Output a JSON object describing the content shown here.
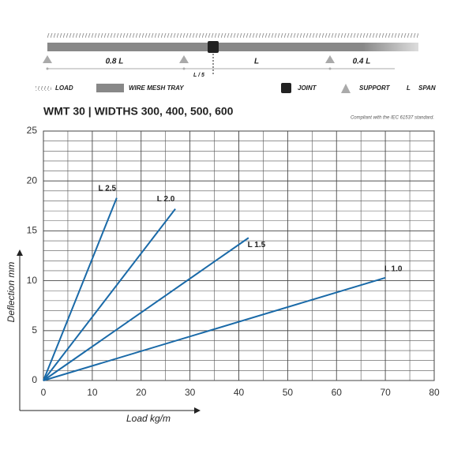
{
  "diagram": {
    "spans": [
      "0.8 L",
      "L / 5",
      "L",
      "0.4 L"
    ],
    "legend": [
      "LOAD",
      "WIRE MESH TRAY",
      "JOINT",
      "SUPPORT",
      "L",
      "SPAN"
    ]
  },
  "chart_data": {
    "type": "line",
    "title": "WMT 30 | WIDTHS 300, 400, 500, 600",
    "subtitle": "Compliant with the IEC 61537 standard.",
    "x_label": "Load kg/m",
    "y_label": "Deflection mm",
    "xlim": [
      0,
      80
    ],
    "ylim": [
      0,
      25
    ],
    "xticks": [
      0,
      10,
      20,
      30,
      40,
      50,
      60,
      70,
      80
    ],
    "yticks": [
      0,
      5,
      10,
      15,
      20,
      25
    ],
    "grid": true,
    "series": [
      {
        "name": "L 2.5",
        "color": "#1a6aa8",
        "x": [
          0,
          15
        ],
        "values": [
          0,
          18.3
        ]
      },
      {
        "name": "L 2.0",
        "color": "#1a6aa8",
        "x": [
          0,
          27
        ],
        "values": [
          0,
          17.2
        ]
      },
      {
        "name": "L 1.5",
        "color": "#1a6aa8",
        "x": [
          0,
          42
        ],
        "values": [
          0,
          14.3
        ]
      },
      {
        "name": "L 1.0",
        "color": "#1a6aa8",
        "x": [
          0,
          70
        ],
        "values": [
          0,
          10.3
        ]
      }
    ]
  }
}
